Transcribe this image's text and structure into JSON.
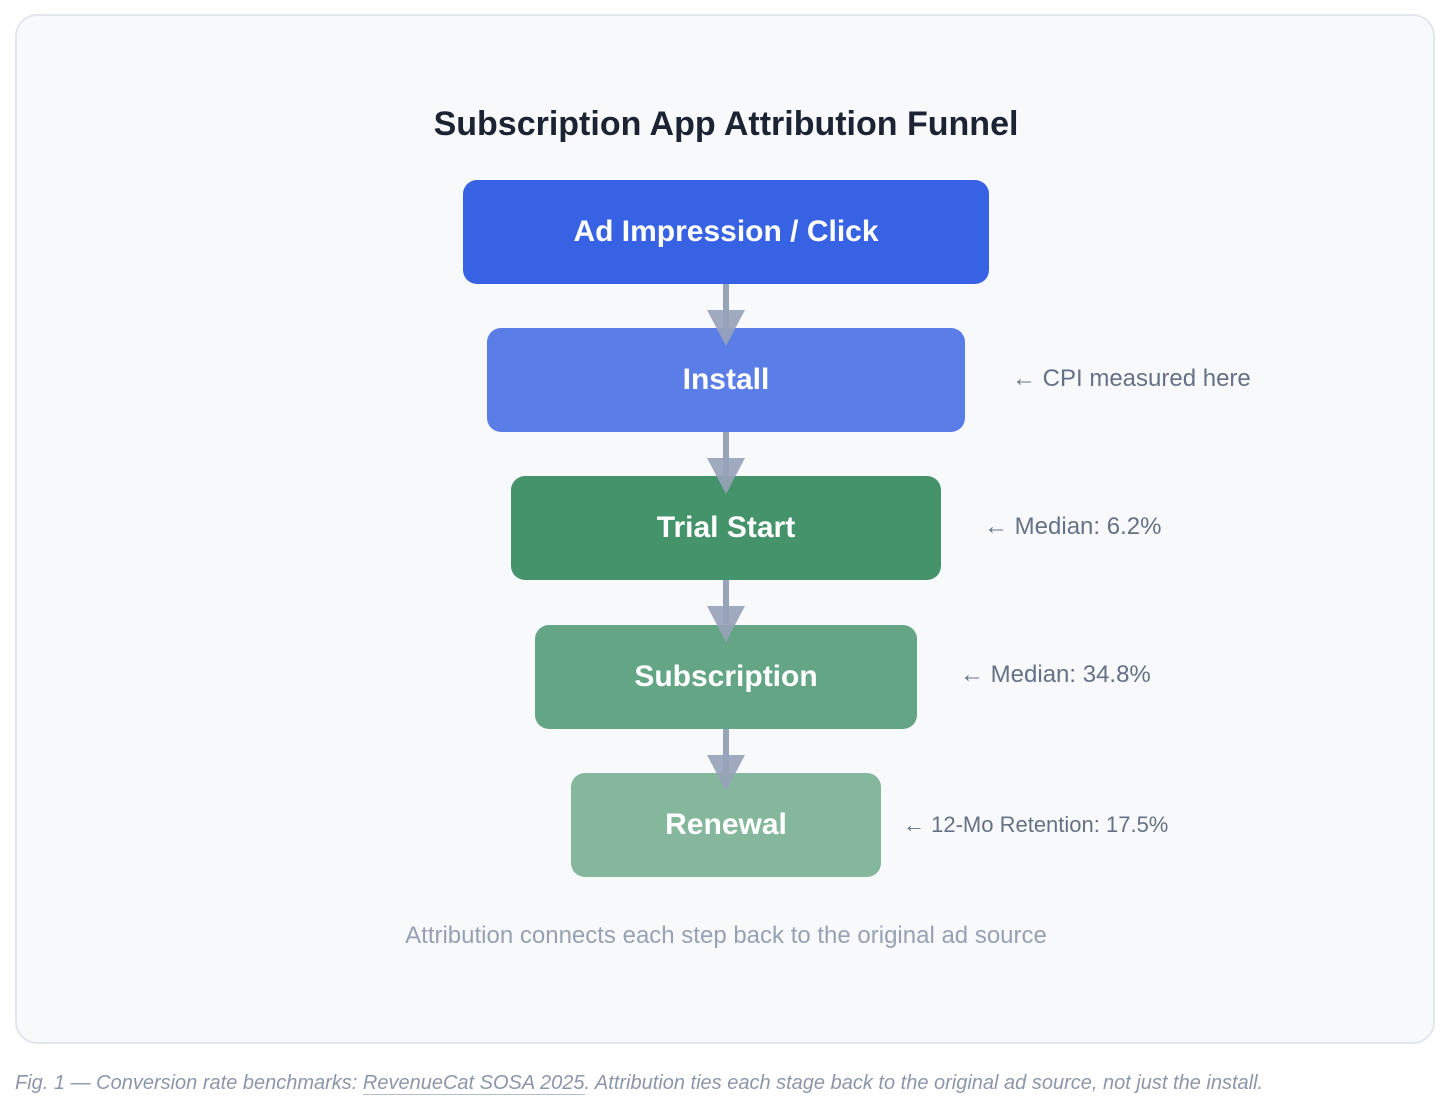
{
  "title": "Subscription App Attribution Funnel",
  "stages": [
    {
      "label": "Ad Impression / Click",
      "color": "#3862e4",
      "annotation": ""
    },
    {
      "label": "Install",
      "color": "#5b7de8",
      "annotation": "← CPI measured here"
    },
    {
      "label": "Trial Start",
      "color": "#44936b",
      "annotation": "← Median: 6.2%"
    },
    {
      "label": "Subscription",
      "color": "#64a585",
      "annotation": "← Median: 34.8%"
    },
    {
      "label": "Renewal",
      "color": "#85b79c",
      "annotation": "← 12-Mo Retention: 17.5%"
    }
  ],
  "arrow_color": "#97a3b8",
  "footnote": "Attribution connects each step back to the original ad source",
  "caption": {
    "prefix": "Fig. 1 — Conversion rate benchmarks: ",
    "link_text": "RevenueCat SOSA 2025",
    "suffix": ". Attribution ties each stage back to the original ad source, not just the install."
  }
}
